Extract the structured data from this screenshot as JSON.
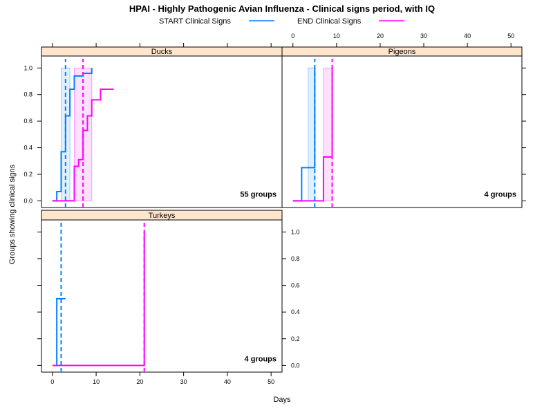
{
  "chart_data": {
    "type": "line",
    "title": "HPAI - Highly Pathogenic Avian Influenza - Clinical signs period, with IQ",
    "xlabel": "Days",
    "ylabel": "Groups showing clinical signs",
    "xlim": [
      -2.5,
      52.5
    ],
    "ylim": [
      -0.05,
      1.09
    ],
    "x_ticks": [
      0,
      10,
      20,
      30,
      40,
      50
    ],
    "y_ticks": [
      0.0,
      0.2,
      0.4,
      0.6,
      0.8,
      1.0
    ],
    "x_tick_labels": [
      "0",
      "10",
      "20",
      "30",
      "40",
      "50"
    ],
    "y_tick_labels": [
      "0.0",
      "0.2",
      "0.4",
      "0.6",
      "0.8",
      "1.0"
    ],
    "legend_position": "top",
    "legend": [
      {
        "label": "START Clinical Signs",
        "color": "#0080ff"
      },
      {
        "label": "END Clinical Signs",
        "color": "#ff00ff"
      }
    ],
    "panels": [
      {
        "name": "Ducks",
        "count_label": "55 groups",
        "series": [
          {
            "name": "START Clinical Signs",
            "color": "#0080ff",
            "median": 3,
            "iq": [
              2,
              4
            ],
            "steps": [
              [
                0,
                0.0
              ],
              [
                1,
                0.07
              ],
              [
                2,
                0.37
              ],
              [
                3,
                0.64
              ],
              [
                4,
                0.84
              ],
              [
                5,
                0.94
              ],
              [
                7,
                0.96
              ],
              [
                9,
                1.0
              ]
            ]
          },
          {
            "name": "END Clinical Signs",
            "color": "#ff00ff",
            "median": 7,
            "iq": [
              5,
              9
            ],
            "steps": [
              [
                0,
                0.0
              ],
              [
                5,
                0.26
              ],
              [
                6,
                0.31
              ],
              [
                7,
                0.53
              ],
              [
                8,
                0.64
              ],
              [
                9,
                0.76
              ],
              [
                11,
                0.84
              ],
              [
                14,
                0.84
              ]
            ]
          }
        ]
      },
      {
        "name": "Pigeons",
        "count_label": "4 groups",
        "series": [
          {
            "name": "START Clinical Signs",
            "color": "#0080ff",
            "median": 5,
            "iq": [
              3.5,
              5
            ],
            "steps": [
              [
                0,
                0.0
              ],
              [
                2,
                0.25
              ],
              [
                5,
                1.0
              ]
            ]
          },
          {
            "name": "END Clinical Signs",
            "color": "#ff00ff",
            "median": 9,
            "iq": [
              7,
              9
            ],
            "steps": [
              [
                0,
                0.0
              ],
              [
                7,
                0.33
              ],
              [
                9,
                1.0
              ]
            ]
          }
        ]
      },
      {
        "name": "Turkeys",
        "count_label": "4 groups",
        "series": [
          {
            "name": "START Clinical Signs",
            "color": "#0080ff",
            "median": 2,
            "iq": null,
            "steps": [
              [
                1,
                0.0
              ],
              [
                1,
                0.5
              ],
              [
                3,
                0.5
              ]
            ]
          },
          {
            "name": "END Clinical Signs",
            "color": "#ff00ff",
            "median": 21,
            "iq": null,
            "steps": [
              [
                0,
                0.0
              ],
              [
                21,
                0.0
              ],
              [
                21,
                1.0
              ]
            ]
          }
        ]
      }
    ]
  }
}
